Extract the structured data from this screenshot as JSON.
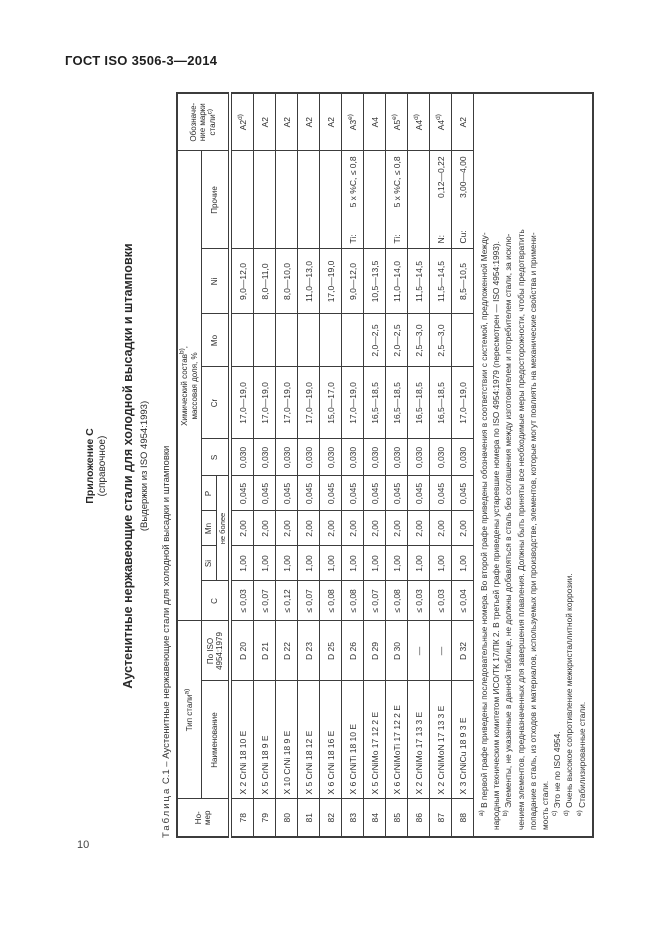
{
  "page": {
    "doc_header": "ГОСТ ISO 3506-3—2014",
    "page_number": "10"
  },
  "appendix": {
    "label": "Приложение С",
    "sub": "(справочное)",
    "title": "Аустенитные нержавеющие стали для холодной высадки и штамповки",
    "subtitle": "(Выдержки из ISO 4954:1993)",
    "caption_word": "Таблица",
    "caption_rest": " С.1 – Аустенитные нержавеющие стали для холодной высадки и штамповки"
  },
  "table": {
    "headers": {
      "num": "Но-\nмер",
      "type_group": "Тип стали^а)^",
      "chem_group": "Химический состав^b)^,\nмассовая доля, %",
      "name": "Наименование",
      "iso": "По ISO\n4954:1979",
      "c": "C",
      "si": "Si",
      "mn": "Mn",
      "p": "P",
      "s": "S",
      "cr": "Cr",
      "mo": "Mo",
      "ni": "Ni",
      "other": "Прочие",
      "ne_bolee": "не более",
      "grade": "Обозначе-\nние марки\nстали^c)^"
    },
    "rows": [
      [
        "78",
        "X 2 CrNi 18 10 E",
        "D 20",
        "≤ 0,03",
        "1,00",
        "2,00",
        "0,045",
        "0,030",
        "17,0—19,0",
        "",
        "9,0—12,0",
        "",
        "A2^d)^"
      ],
      [
        "79",
        "X 5 CrNi 18 9 E",
        "D 21",
        "≤ 0,07",
        "1,00",
        "2,00",
        "0,045",
        "0,030",
        "17,0—19,0",
        "",
        "8,0—11,0",
        "",
        "A2"
      ],
      [
        "80",
        "X 10 CrNi 18 9 E",
        "D 22",
        "≤ 0,12",
        "1,00",
        "2,00",
        "0,045",
        "0,030",
        "17,0—19,0",
        "",
        "8,0—10,0",
        "",
        "A2"
      ],
      [
        "81",
        "X 5 CrNi 18 12 E",
        "D 23",
        "≤ 0,07",
        "1,00",
        "2,00",
        "0,045",
        "0,030",
        "17,0—19,0",
        "",
        "11,0—13,0",
        "",
        "A2"
      ],
      [
        "82",
        "X 6 CrNi 18 16 E",
        "D 25",
        "≤ 0,08",
        "1,00",
        "2,00",
        "0,045",
        "0,030",
        "15,0—17,0",
        "",
        "17,0—19,0",
        "",
        "A2"
      ],
      [
        "83",
        "X 6 CrNiTi 18 10 E",
        "D 26",
        "≤ 0,08",
        "1,00",
        "2,00",
        "0,045",
        "0,030",
        "17,0—19,0",
        "",
        "9,0—12,0",
        "Ti:|5 x %C, ≤ 0,8",
        "A3^е)^"
      ],
      [
        "84",
        "X 5 CrNiMo 17 12 2 E",
        "D 29",
        "≤ 0,07",
        "1,00",
        "2,00",
        "0,045",
        "0,030",
        "16,5—18,5",
        "2,0—2,5",
        "10,5—13,5",
        "",
        "A4"
      ],
      [
        "85",
        "X 6 CrNiMoTi 17 12 2 E",
        "D 30",
        "≤ 0,08",
        "1,00",
        "2,00",
        "0,045",
        "0,030",
        "16,5—18,5",
        "2,0—2,5",
        "11,0—14,0",
        "Ti:|5 x %C, ≤ 0,8",
        "A5^е)^"
      ],
      [
        "86",
        "X 2 CrNiMo 17 13 3 E",
        "—",
        "≤ 0,03",
        "1,00",
        "2,00",
        "0,045",
        "0,030",
        "16,5—18,5",
        "2,5—3,0",
        "11,5—14,5",
        "",
        "A4^d)^"
      ],
      [
        "87",
        "X 2 CrNiMoN 17 13 3 E",
        "—",
        "≤ 0,03",
        "1,00",
        "2,00",
        "0,045",
        "0,030",
        "16,5—18,5",
        "2,5—3,0",
        "11,5—14,5",
        "N:|0,12—0,22",
        "A4^d)^"
      ],
      [
        "88",
        "X 3 CrNiCu 18 9 3 E",
        "D 32",
        "≤ 0,04",
        "1,00",
        "2,00",
        "0,045",
        "0,030",
        "17,0—19,0",
        "",
        "8,5—10,5",
        "Cu:|3,00—4,00",
        "A2"
      ]
    ],
    "footnotes": [
      {
        "indent": true,
        "text": "^а)^ В первой графе приведены последовательные номера. Во второй графе приведены обозначения в соответствии с системой, предложенной Между-"
      },
      {
        "indent": false,
        "text": "народным техническим комитетом ИСО/ТК 17/ПК 2. В третьей графе приведены устаревшие номера по ISO 4954:1979 (пересмотрен — ISO 4954:1993)."
      },
      {
        "indent": true,
        "text": "^b)^ Элементы, не указанные в данной таблице, не должны добавляться в сталь без соглашения между изготовителем и потребителем стали, за исклю-"
      },
      {
        "indent": false,
        "text": "чением элементов, предназначенных для завершения плавления. Должны быть приняты все необходимые меры предосторожности, чтобы предотвратить"
      },
      {
        "indent": false,
        "text": "попадание в сталь, из отходов и материалов, используемых при производстве, элементов, которые могут повлиять на механические свойства и примени-"
      },
      {
        "indent": false,
        "text": "мость стали."
      },
      {
        "indent": true,
        "text": "^c)^ Это не по ISO 4954."
      },
      {
        "indent": true,
        "text": "^d)^ Очень высокое сопротивление межкристаллитной коррозии."
      },
      {
        "indent": true,
        "text": "^е)^ Стабилизированные стали."
      }
    ]
  }
}
